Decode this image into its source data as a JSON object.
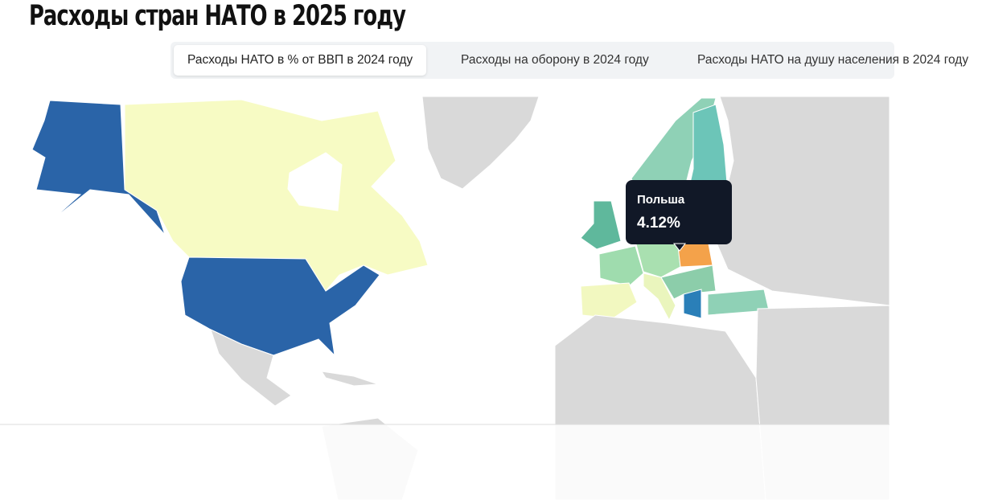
{
  "header": {
    "title": "Расходы стран НАТО в 2025 году"
  },
  "tabs": [
    "Расходы НАТО в % от ВВП в 2024 году",
    "Расходы на оборону в 2024 году",
    "Расходы НАТО на душу населения в 2024 году"
  ],
  "tooltip": {
    "country": "Польша",
    "value": "4.12%"
  }
}
